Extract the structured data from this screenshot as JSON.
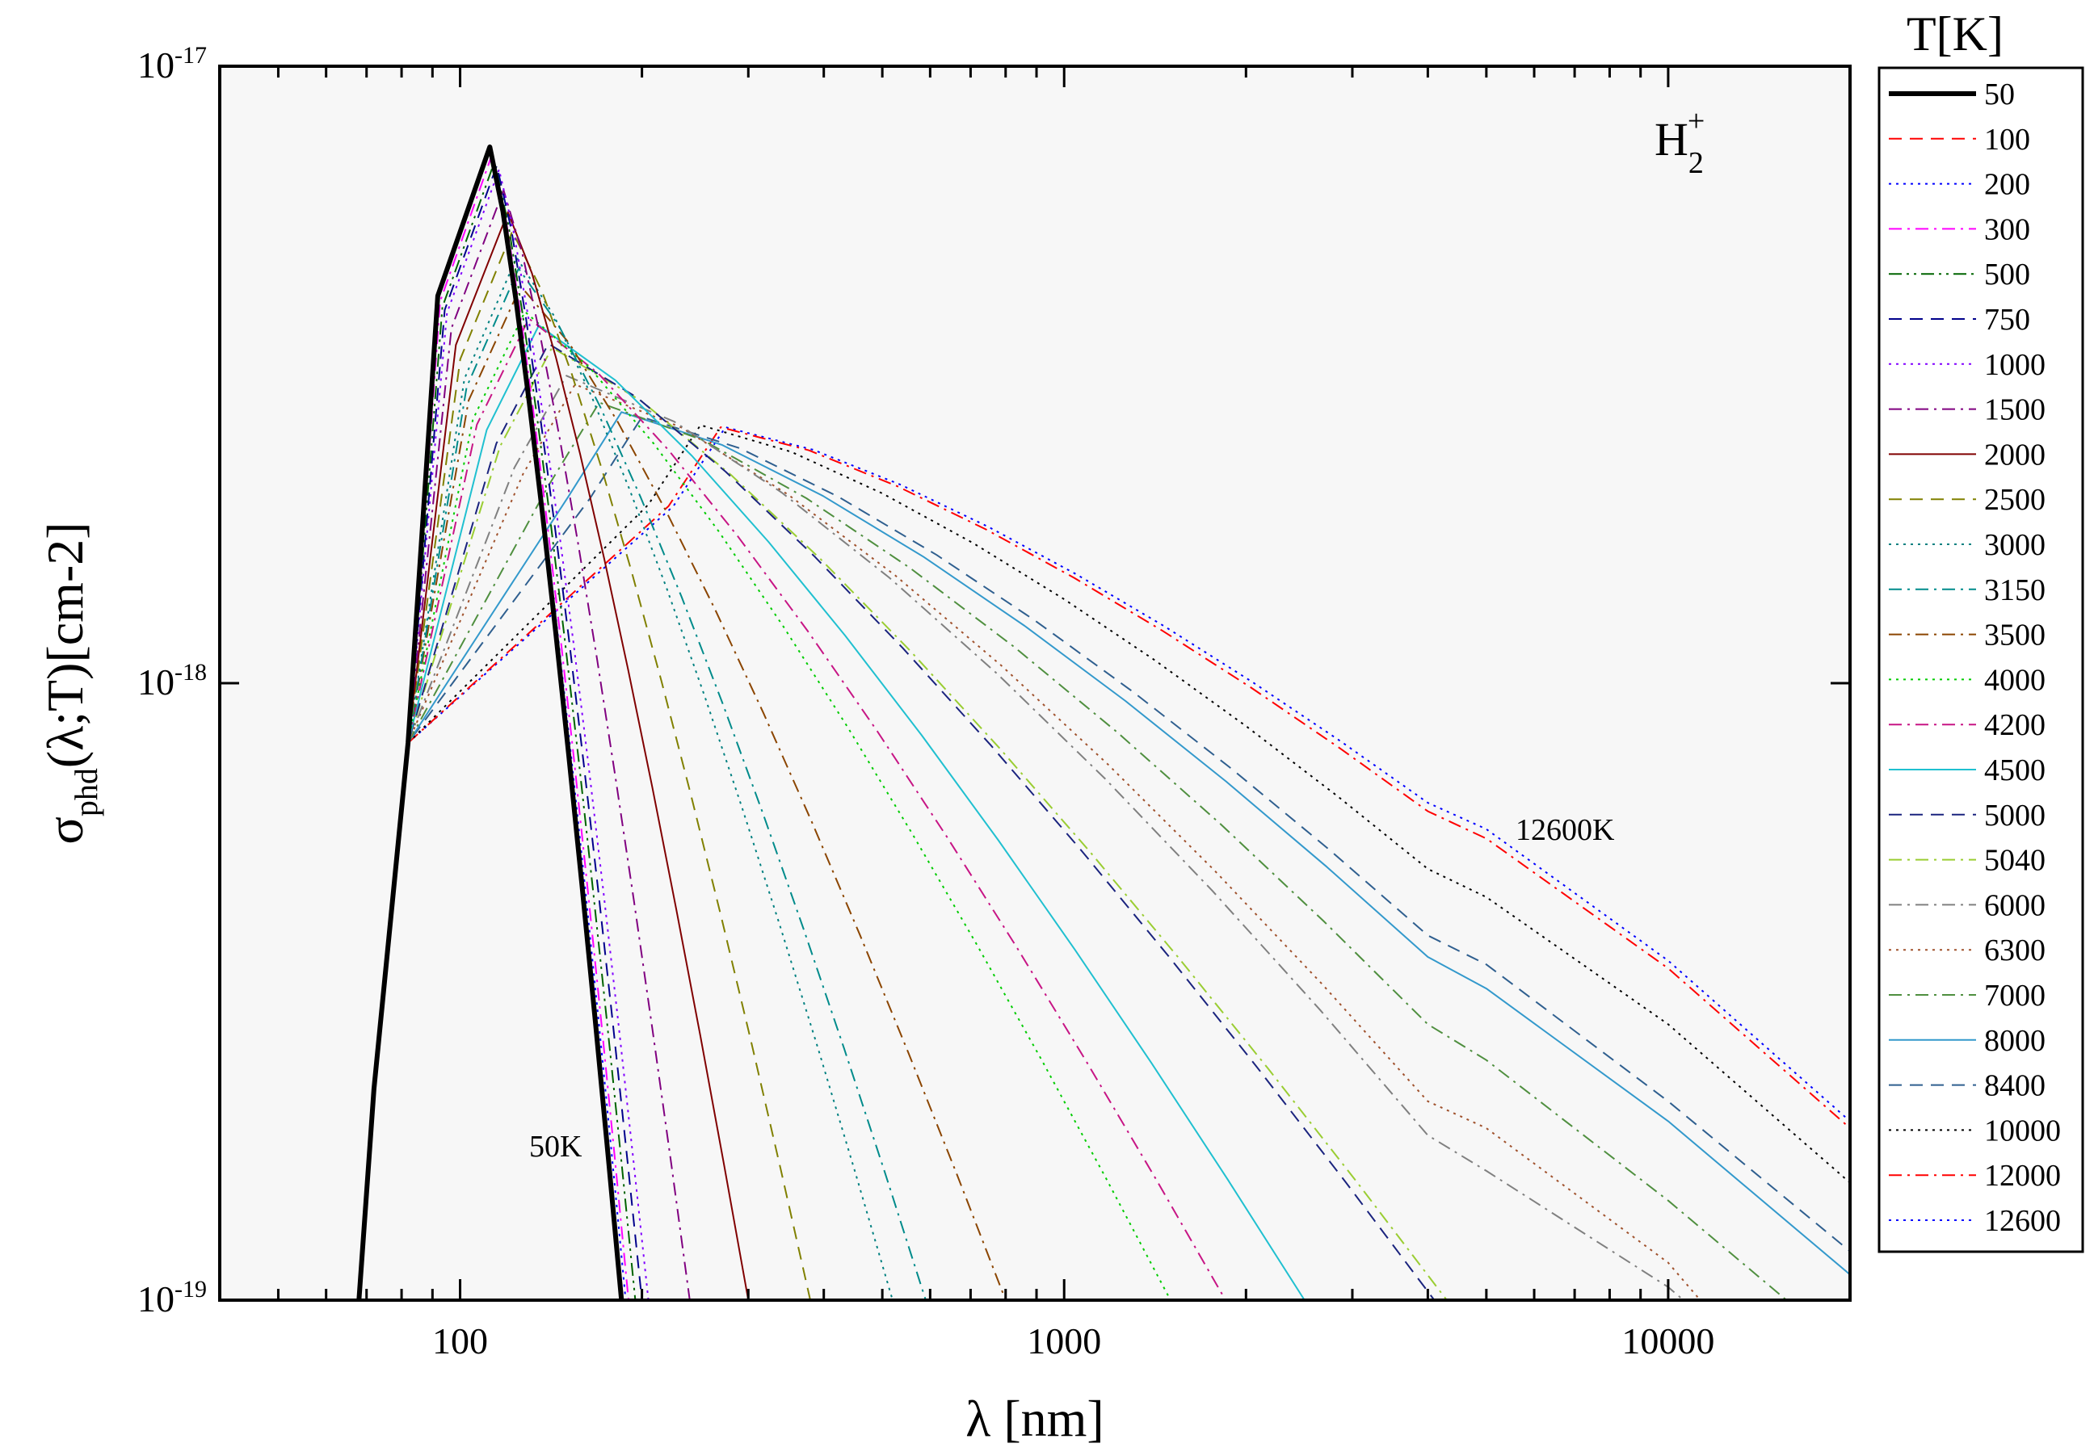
{
  "chart_data": {
    "type": "line",
    "xscale": "log",
    "yscale": "log",
    "xlabel": "λ [nm]",
    "ylabel": "σphd(λ;T)[cm-2]",
    "xlim": [
      40,
      20000
    ],
    "ylim": [
      1e-19,
      1e-17
    ],
    "x_ticks": [
      100,
      1000,
      10000
    ],
    "x_tick_labels": [
      "100",
      "1000",
      "10000"
    ],
    "y_ticks": [
      1e-19,
      1e-18,
      1e-17
    ],
    "y_tick_labels": [
      "10-19",
      "10-18",
      "10-17"
    ],
    "grid": false,
    "plot_background": "#f7f7f7",
    "legend_title": "T[K]",
    "legend_position": "right",
    "species_label": "H2+",
    "annotations": [
      {
        "text": "50K"
      },
      {
        "text": "12600K"
      }
    ],
    "series": [
      {
        "name": "50",
        "color": "#000000",
        "dash": "solid",
        "width": 6
      },
      {
        "name": "100",
        "color": "#ff0000",
        "dash": "dash",
        "width": 2
      },
      {
        "name": "200",
        "color": "#0000ff",
        "dash": "dot",
        "width": 2
      },
      {
        "name": "300",
        "color": "#ff00ff",
        "dash": "dashdot",
        "width": 2
      },
      {
        "name": "500",
        "color": "#006400",
        "dash": "dashdotdot",
        "width": 2
      },
      {
        "name": "750",
        "color": "#00008b",
        "dash": "dash",
        "width": 2
      },
      {
        "name": "1000",
        "color": "#8000ff",
        "dash": "dot",
        "width": 2
      },
      {
        "name": "1500",
        "color": "#800080",
        "dash": "dashdot",
        "width": 2
      },
      {
        "name": "2000",
        "color": "#800000",
        "dash": "solid",
        "width": 2
      },
      {
        "name": "2500",
        "color": "#808000",
        "dash": "dash",
        "width": 2
      },
      {
        "name": "3000",
        "color": "#008080",
        "dash": "dot",
        "width": 2
      },
      {
        "name": "3150",
        "color": "#008b8b",
        "dash": "dashdot",
        "width": 2
      },
      {
        "name": "3500",
        "color": "#8b4500",
        "dash": "dashdot",
        "width": 2
      },
      {
        "name": "4000",
        "color": "#00cc00",
        "dash": "dot",
        "width": 2
      },
      {
        "name": "4200",
        "color": "#c71585",
        "dash": "dashdot",
        "width": 2
      },
      {
        "name": "4500",
        "color": "#20c0d0",
        "dash": "solid",
        "width": 2
      },
      {
        "name": "5000",
        "color": "#1a237e",
        "dash": "dash",
        "width": 2
      },
      {
        "name": "5040",
        "color": "#9acd32",
        "dash": "dashdot",
        "width": 2
      },
      {
        "name": "6000",
        "color": "#808080",
        "dash": "dashdot",
        "width": 2
      },
      {
        "name": "6300",
        "color": "#a0522d",
        "dash": "dot",
        "width": 2
      },
      {
        "name": "7000",
        "color": "#4f8f3f",
        "dash": "dashdot",
        "width": 2
      },
      {
        "name": "8000",
        "color": "#3399cc",
        "dash": "solid",
        "width": 2
      },
      {
        "name": "8400",
        "color": "#2f5f8f",
        "dash": "dash",
        "width": 2
      },
      {
        "name": "10000",
        "color": "#000000",
        "dash": "dot",
        "width": 2
      },
      {
        "name": "12000",
        "color": "#ff0000",
        "dash": "dashdot",
        "width": 2
      },
      {
        "name": "12600",
        "color": "#0000ff",
        "dash": "dot",
        "width": 2
      }
    ],
    "curves": [
      {
        "name": "50",
        "peak_x": 112,
        "peak_y": 7.4e-18,
        "end_x": 185,
        "tail": []
      },
      {
        "name": "100",
        "peak_x": 112,
        "peak_y": 7.4e-18,
        "end_x": 186,
        "tail": []
      },
      {
        "name": "200",
        "peak_x": 112,
        "peak_y": 7.3e-18,
        "end_x": 188,
        "tail": []
      },
      {
        "name": "300",
        "peak_x": 113,
        "peak_y": 7.2e-18,
        "end_x": 190,
        "tail": []
      },
      {
        "name": "500",
        "peak_x": 114,
        "peak_y": 7e-18,
        "end_x": 195,
        "tail": []
      },
      {
        "name": "750",
        "peak_x": 115,
        "peak_y": 6.9e-18,
        "end_x": 200,
        "tail": []
      },
      {
        "name": "1000",
        "peak_x": 116,
        "peak_y": 6.8e-18,
        "end_x": 205,
        "tail": []
      },
      {
        "name": "1500",
        "peak_x": 118,
        "peak_y": 6.3e-18,
        "end_x": 240,
        "tail": []
      },
      {
        "name": "2000",
        "peak_x": 120,
        "peak_y": 5.8e-18,
        "end_x": 300,
        "tail": []
      },
      {
        "name": "2500",
        "peak_x": 122,
        "peak_y": 5.4e-18,
        "end_x": 380,
        "tail": []
      },
      {
        "name": "3000",
        "peak_x": 124,
        "peak_y": 4.9e-18,
        "end_x": 520,
        "tail": []
      },
      {
        "name": "3150",
        "peak_x": 125,
        "peak_y": 4.7e-18,
        "end_x": 590,
        "tail": []
      },
      {
        "name": "3500",
        "peak_x": 126,
        "peak_y": 4.4e-18,
        "end_x": 800,
        "tail": []
      },
      {
        "name": "4000",
        "peak_x": 128,
        "peak_y": 4e-18,
        "end_x": 1500,
        "tail": []
      },
      {
        "name": "4200",
        "peak_x": 130,
        "peak_y": 3.9e-18,
        "end_x": 1850,
        "tail": []
      },
      {
        "name": "4500",
        "peak_x": 135,
        "peak_y": 3.8e-18,
        "end_x": 2500,
        "tail": []
      },
      {
        "name": "5000",
        "peak_x": 140,
        "peak_y": 3.55e-18,
        "end_x": 4100,
        "tail": []
      },
      {
        "name": "5040",
        "peak_x": 142,
        "peak_y": 3.5e-18,
        "end_x": 4300,
        "tail": []
      },
      {
        "name": "6000",
        "peak_x": 150,
        "peak_y": 3.15e-18,
        "end_x": 10600,
        "tail": [
          [
            4000,
            1.85e-19
          ],
          [
            5000,
            1.62e-19
          ],
          [
            10000,
            1.05e-19
          ]
        ]
      },
      {
        "name": "6300",
        "peak_x": 155,
        "peak_y": 3.05e-18,
        "end_x": 11300,
        "tail": [
          [
            4000,
            2.1e-19
          ],
          [
            5000,
            1.9e-19
          ],
          [
            10000,
            1.15e-19
          ]
        ]
      },
      {
        "name": "7000",
        "peak_x": 170,
        "peak_y": 2.85e-18,
        "end_x": 15700,
        "tail": [
          [
            4000,
            2.8e-19
          ],
          [
            5000,
            2.45e-19
          ],
          [
            10000,
            1.45e-19
          ]
        ]
      },
      {
        "name": "8000",
        "peak_x": 185,
        "peak_y": 2.75e-18,
        "end_x": 20000,
        "tail": [
          [
            4000,
            3.6e-19
          ],
          [
            5000,
            3.2e-19
          ],
          [
            10000,
            1.95e-19
          ],
          [
            20000,
            1.1e-19
          ]
        ]
      },
      {
        "name": "8400",
        "peak_x": 200,
        "peak_y": 2.7e-18,
        "end_x": 20000,
        "tail": [
          [
            4000,
            3.9e-19
          ],
          [
            5000,
            3.5e-19
          ],
          [
            10000,
            2.1e-19
          ],
          [
            20000,
            1.2e-19
          ]
        ]
      },
      {
        "name": "10000",
        "peak_x": 250,
        "peak_y": 2.62e-18,
        "end_x": 20000,
        "tail": [
          [
            4000,
            5e-19
          ],
          [
            5000,
            4.5e-19
          ],
          [
            10000,
            2.8e-19
          ],
          [
            20000,
            1.55e-19
          ]
        ]
      },
      {
        "name": "12000",
        "peak_x": 270,
        "peak_y": 2.6e-18,
        "end_x": 20000,
        "tail": [
          [
            4000,
            6.2e-19
          ],
          [
            5000,
            5.6e-19
          ],
          [
            10000,
            3.45e-19
          ],
          [
            20000,
            1.9e-19
          ]
        ]
      },
      {
        "name": "12600",
        "peak_x": 275,
        "peak_y": 2.6e-18,
        "end_x": 20000,
        "tail": [
          [
            4000,
            6.4e-19
          ],
          [
            5000,
            5.8e-19
          ],
          [
            10000,
            3.55e-19
          ],
          [
            20000,
            1.95e-19
          ]
        ]
      }
    ]
  }
}
